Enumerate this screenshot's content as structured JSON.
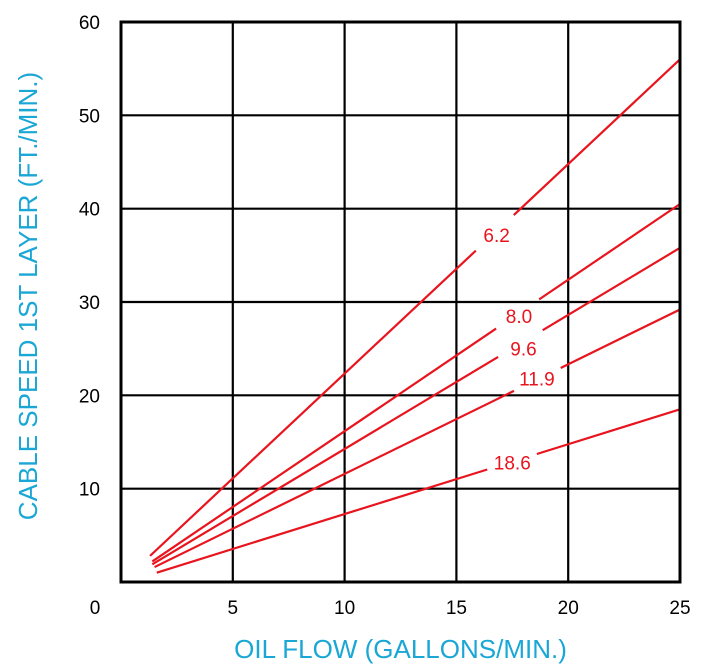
{
  "colors": {
    "axis_title": "#1aa7d6",
    "series": "#e8141e",
    "grid": "#000000"
  },
  "chart_data": {
    "type": "line",
    "xlabel": "OIL FLOW (GALLONS/MIN.)",
    "ylabel": "CABLE SPEED 1ST LAYER (FT./MIN.)",
    "xlim": [
      0,
      25
    ],
    "ylim": [
      0,
      60
    ],
    "x_ticks": [
      0,
      5,
      10,
      15,
      20,
      25
    ],
    "x_tick_labels": [
      "",
      "5",
      "10",
      "15",
      "20",
      "25"
    ],
    "y_ticks": [
      10,
      20,
      30,
      40,
      50,
      60
    ],
    "y_tick_labels": [
      "10",
      "20",
      "30",
      "40",
      "50",
      "60"
    ],
    "origin_label": "0",
    "grid": true,
    "series": [
      {
        "name": "6.2",
        "x": [
          1.3,
          25
        ],
        "y": [
          2.8,
          56.0
        ],
        "label_x": 16.8,
        "label_y": 37.2
      },
      {
        "name": "8.0",
        "x": [
          1.4,
          25
        ],
        "y": [
          2.2,
          40.5
        ],
        "label_x": 17.8,
        "label_y": 28.5
      },
      {
        "name": "9.6",
        "x": [
          1.4,
          25
        ],
        "y": [
          1.9,
          35.8
        ],
        "label_x": 18.0,
        "label_y": 25.0
      },
      {
        "name": "11.9",
        "x": [
          1.5,
          25
        ],
        "y": [
          1.6,
          29.2
        ],
        "label_x": 18.6,
        "label_y": 21.8
      },
      {
        "name": "18.6",
        "x": [
          1.6,
          25
        ],
        "y": [
          1.0,
          18.5
        ],
        "label_x": 17.5,
        "label_y": 12.8
      }
    ]
  }
}
